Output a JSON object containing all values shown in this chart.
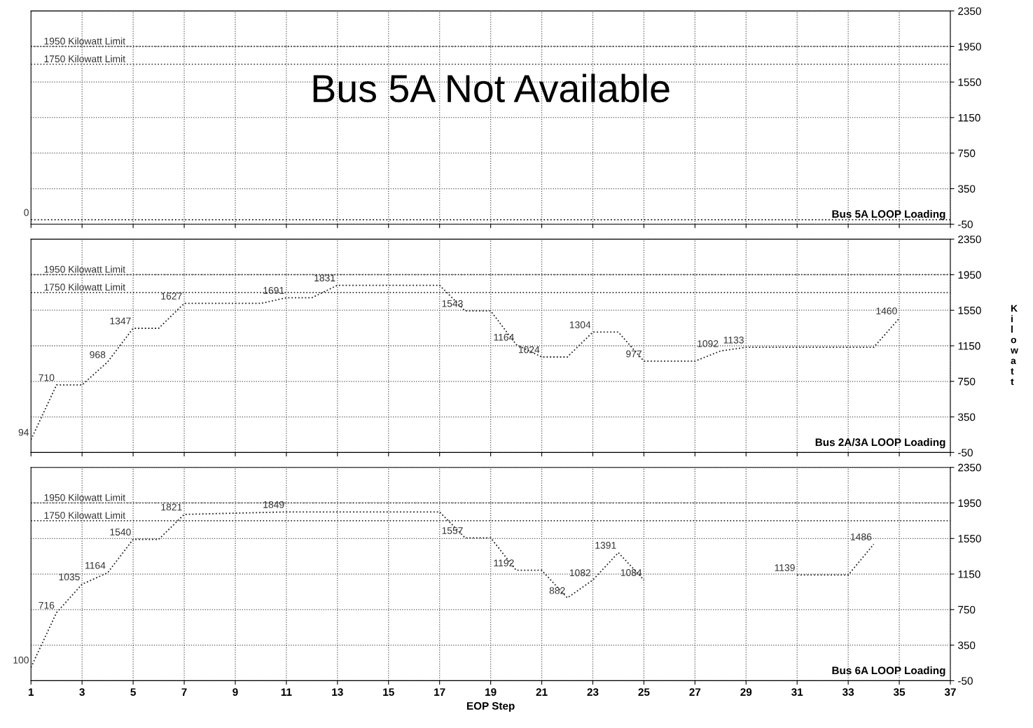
{
  "chart_data": [
    {
      "type": "line",
      "xlim": [
        1,
        37
      ],
      "xticks": [
        1,
        3,
        5,
        7,
        9,
        11,
        13,
        15,
        17,
        19,
        21,
        23,
        25,
        27,
        29,
        31,
        33,
        35,
        37
      ],
      "ylim": [
        -50,
        2350
      ],
      "yticks": [
        -50,
        350,
        750,
        1150,
        1550,
        1950,
        2350
      ],
      "tick_labels": "y",
      "grid": true,
      "line_style": "dotted",
      "marker": "none",
      "series": [
        {
          "color": "#222222",
          "x": [
            1,
            37
          ],
          "values": [
            0,
            0
          ],
          "value_labels": [
            "0",
            null
          ]
        }
      ],
      "ref_lines": [
        {
          "axis": "y",
          "value": 1950,
          "label": "1950 Kilowatt Limit",
          "color": "#333333",
          "line_style": "dotted"
        },
        {
          "axis": "y",
          "value": 1750,
          "label": "1750 Kilowatt Limit",
          "color": "#333333",
          "line_style": "dotted"
        }
      ],
      "annotations": [
        "Bus 5A LOOP Loading",
        "Bus 5A Not Available"
      ]
    },
    {
      "type": "line",
      "xlim": [
        1,
        37
      ],
      "xticks": [
        1,
        3,
        5,
        7,
        9,
        11,
        13,
        15,
        17,
        19,
        21,
        23,
        25,
        27,
        29,
        31,
        33,
        35,
        37
      ],
      "ylim": [
        -50,
        2350
      ],
      "yticks": [
        -50,
        350,
        750,
        1150,
        1550,
        1950,
        2350
      ],
      "tick_labels": "y",
      "grid": true,
      "line_style": "dotted",
      "marker": "none",
      "ylabel": "Kilowatt",
      "series": [
        {
          "color": "#222222",
          "x": [
            1,
            2,
            3,
            4,
            5,
            6,
            7,
            10,
            11,
            12,
            13,
            17,
            18,
            19,
            20,
            21,
            22,
            23,
            24,
            25,
            27,
            28,
            29,
            34,
            35
          ],
          "values": [
            94,
            710,
            710,
            968,
            1347,
            1347,
            1627,
            1627,
            1691,
            1691,
            1831,
            1831,
            1543,
            1543,
            1164,
            1024,
            1024,
            1304,
            1304,
            977,
            977,
            1092,
            1133,
            1133,
            1460
          ],
          "value_labels": [
            "94",
            "710",
            null,
            "968",
            "1347",
            null,
            "1627",
            null,
            "1691",
            null,
            "1831",
            null,
            "1543",
            null,
            "1164",
            "1024",
            null,
            "1304",
            null,
            "977",
            null,
            "1092",
            "1133",
            null,
            "1460"
          ]
        }
      ],
      "ref_lines": [
        {
          "axis": "y",
          "value": 1950,
          "label": "1950 Kilowatt Limit",
          "color": "#333333",
          "line_style": "dotted"
        },
        {
          "axis": "y",
          "value": 1750,
          "label": "1750 Kilowatt Limit",
          "color": "#333333",
          "line_style": "dotted"
        }
      ],
      "annotations": [
        "Bus 2A/3A LOOP Loading"
      ]
    },
    {
      "type": "line",
      "xlim": [
        1,
        37
      ],
      "xticks": [
        1,
        3,
        5,
        7,
        9,
        11,
        13,
        15,
        17,
        19,
        21,
        23,
        25,
        27,
        29,
        31,
        33,
        35,
        37
      ],
      "ylim": [
        -50,
        2350
      ],
      "yticks": [
        -50,
        350,
        750,
        1150,
        1550,
        1950,
        2350
      ],
      "grid": true,
      "line_style": "dotted",
      "marker": "none",
      "xlabel": "EOP Step",
      "series": [
        {
          "color": "#222222",
          "x": [
            1,
            2,
            3,
            4,
            5,
            6,
            7,
            11,
            17,
            18,
            19,
            20,
            21,
            22,
            23,
            24,
            25,
            28,
            31,
            33,
            34
          ],
          "values": [
            100,
            716,
            1035,
            1164,
            1540,
            1540,
            1821,
            1849,
            1849,
            1557,
            1557,
            1192,
            1192,
            882,
            1082,
            1391,
            1084,
            null,
            1139,
            1139,
            1486
          ],
          "value_labels": [
            "100",
            "716",
            "1035",
            "1164",
            "1540",
            null,
            "1821",
            "1849",
            null,
            "1557",
            null,
            "1192",
            null,
            "882",
            "1082",
            "1391",
            "1084",
            null,
            "1139",
            null,
            "1486"
          ]
        }
      ],
      "ref_lines": [
        {
          "axis": "y",
          "value": 1950,
          "label": "1950 Kilowatt Limit",
          "color": "#333333",
          "line_style": "dotted"
        },
        {
          "axis": "y",
          "value": 1750,
          "label": "1750 Kilowatt Limit",
          "color": "#333333",
          "line_style": "dotted"
        }
      ],
      "annotations": [
        "Bus 6A LOOP Loading"
      ]
    }
  ]
}
